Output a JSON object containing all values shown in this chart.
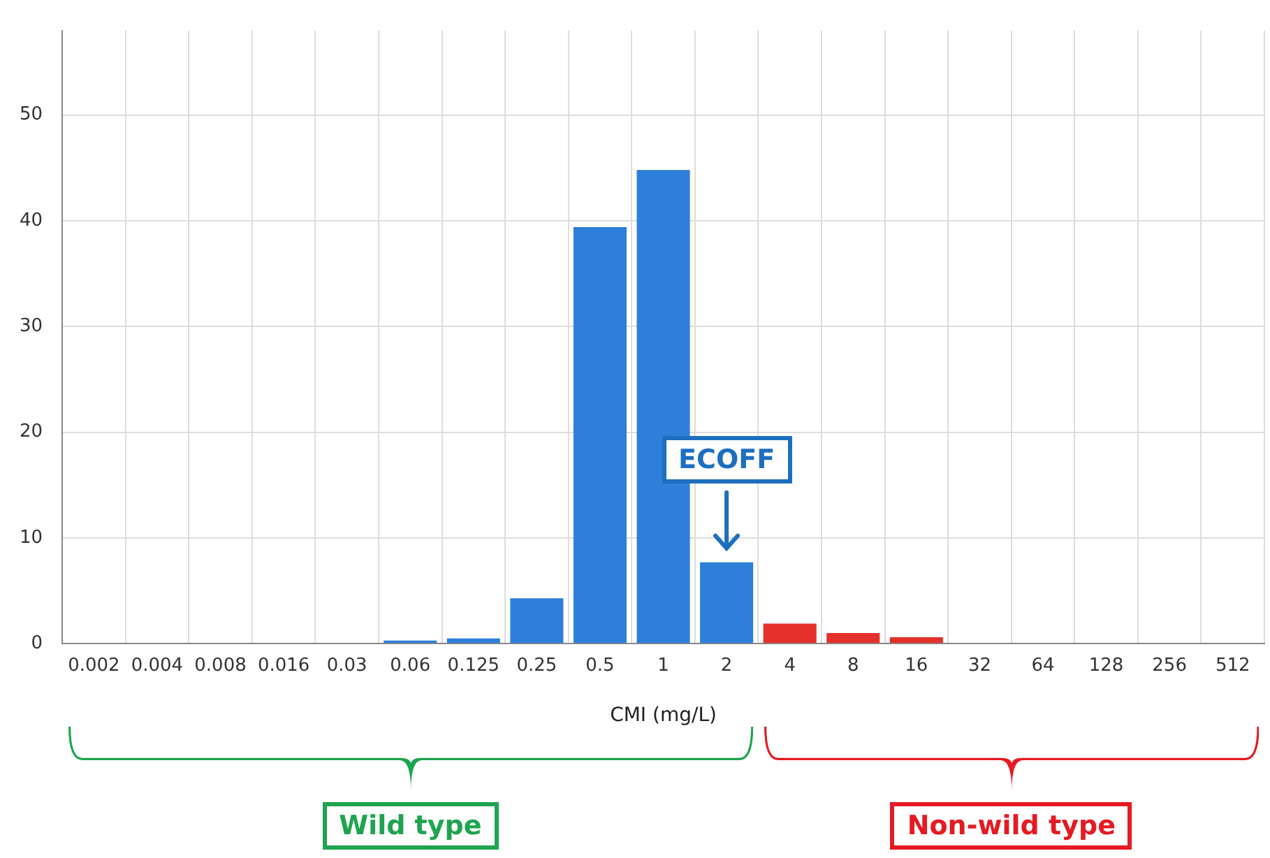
{
  "chart_data": {
    "type": "bar",
    "xlabel": "CMI (mg/L)",
    "categories": [
      "0.002",
      "0.004",
      "0.008",
      "0.016",
      "0.03",
      "0.06",
      "0.125",
      "0.25",
      "0.5",
      "1",
      "2",
      "4",
      "8",
      "16",
      "32",
      "64",
      "128",
      "256",
      "512"
    ],
    "values": [
      0,
      0,
      0,
      0,
      0,
      0.3,
      0.5,
      4.3,
      39.4,
      44.8,
      7.7,
      1.9,
      1.0,
      0.6,
      0,
      0,
      0,
      0,
      0
    ],
    "colors": [
      "#2e7fd9",
      "#2e7fd9",
      "#2e7fd9",
      "#2e7fd9",
      "#2e7fd9",
      "#2e7fd9",
      "#2e7fd9",
      "#2e7fd9",
      "#2e7fd9",
      "#2e7fd9",
      "#2e7fd9",
      "#e5312b",
      "#e5312b",
      "#e5312b",
      "#e5312b",
      "#e5312b",
      "#e5312b",
      "#e5312b",
      "#e5312b"
    ],
    "ylim": [
      0,
      58
    ],
    "yticks": [
      0,
      10,
      20,
      30,
      40,
      50
    ],
    "grid": true,
    "annotations": [
      "ECOFF",
      "Wild type",
      "Non-wild type"
    ]
  }
}
